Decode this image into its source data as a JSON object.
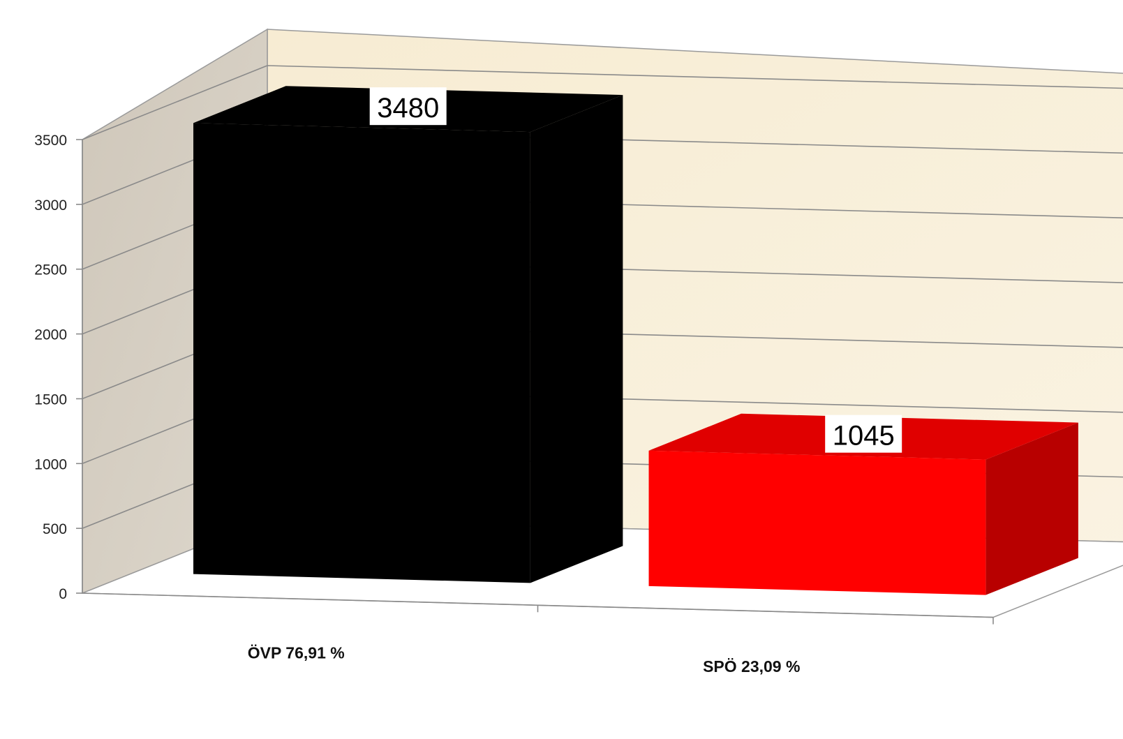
{
  "chart_data": {
    "type": "bar",
    "categories": [
      "ÖVP 76,91 %",
      "SPÖ 23,09 %"
    ],
    "series": [
      {
        "values": [
          3480,
          1045
        ]
      }
    ],
    "title": "",
    "xlabel": "",
    "ylabel": "",
    "ylim": [
      0,
      3500
    ],
    "yticks": [
      0,
      500,
      1000,
      1500,
      2000,
      2500,
      3000,
      3500
    ],
    "ytick_labels": [
      "0",
      "500",
      "1000",
      "1500",
      "2000",
      "2500",
      "3000",
      "3500"
    ],
    "data_labels": [
      "3480",
      "1045"
    ],
    "grid": true,
    "legend": "none",
    "style": "3d-column",
    "colors": {
      "bars": [
        "#000000",
        "#ff0000"
      ],
      "bar_tops": [
        "#000000",
        "#e00000"
      ],
      "bar_sides": [
        "#000000",
        "#b80000"
      ],
      "back_wall": "#f7efd8",
      "side_wall": "#d2cbbf",
      "gridline": "#8a8a8a"
    }
  }
}
